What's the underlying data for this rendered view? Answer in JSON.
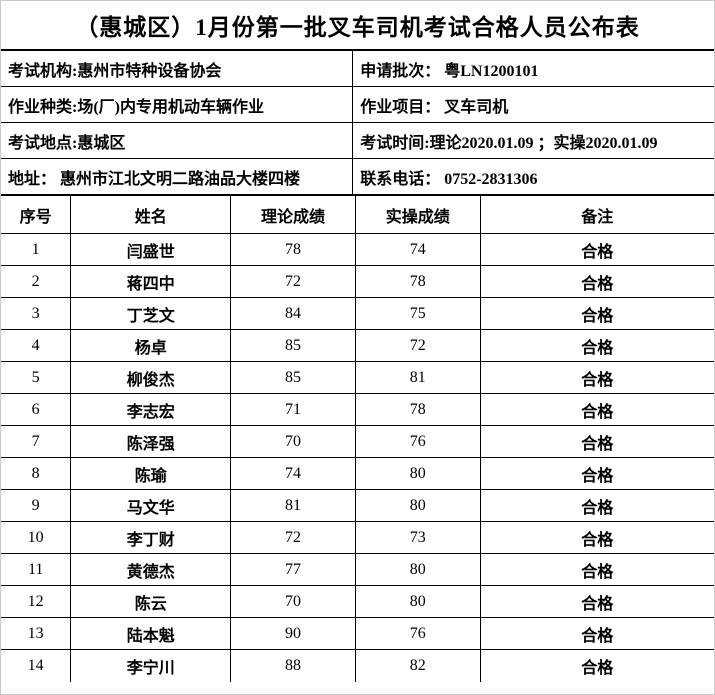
{
  "title": "（惠城区）1月份第一批叉车司机考试合格人员公布表",
  "info_rows": [
    {
      "left": "考试机构:惠州市特种设备协会",
      "right": "申请批次： 粤LN1200101"
    },
    {
      "left": "作业种类:场(厂)内专用机动车辆作业",
      "right": "作业项目： 叉车司机"
    },
    {
      "left": "考试地点:惠城区",
      "right": "考试时间:理论2020.01.09 ；实操2020.01.09"
    },
    {
      "left": "地址： 惠州市江北文明二路油品大楼四楼",
      "right": "联系电话： 0752-2831306"
    }
  ],
  "table": {
    "headers": [
      "序号",
      "姓名",
      "理论成绩",
      "实操成绩",
      "备注"
    ],
    "rows": [
      {
        "no": "1",
        "name": "闫盛世",
        "theory": "78",
        "practical": "74",
        "remark": "合格"
      },
      {
        "no": "2",
        "name": "蒋四中",
        "theory": "72",
        "practical": "78",
        "remark": "合格"
      },
      {
        "no": "3",
        "name": "丁芝文",
        "theory": "84",
        "practical": "75",
        "remark": "合格"
      },
      {
        "no": "4",
        "name": "杨卓",
        "theory": "85",
        "practical": "72",
        "remark": "合格"
      },
      {
        "no": "5",
        "name": "柳俊杰",
        "theory": "85",
        "practical": "81",
        "remark": "合格"
      },
      {
        "no": "6",
        "name": "李志宏",
        "theory": "71",
        "practical": "78",
        "remark": "合格"
      },
      {
        "no": "7",
        "name": "陈泽强",
        "theory": "70",
        "practical": "76",
        "remark": "合格"
      },
      {
        "no": "8",
        "name": "陈瑜",
        "theory": "74",
        "practical": "80",
        "remark": "合格"
      },
      {
        "no": "9",
        "name": "马文华",
        "theory": "81",
        "practical": "80",
        "remark": "合格"
      },
      {
        "no": "10",
        "name": "李丁财",
        "theory": "72",
        "practical": "73",
        "remark": "合格"
      },
      {
        "no": "11",
        "name": "黄德杰",
        "theory": "77",
        "practical": "80",
        "remark": "合格"
      },
      {
        "no": "12",
        "name": "陈云",
        "theory": "70",
        "practical": "80",
        "remark": "合格"
      },
      {
        "no": "13",
        "name": "陆本魁",
        "theory": "90",
        "practical": "76",
        "remark": "合格"
      },
      {
        "no": "14",
        "name": "李宁川",
        "theory": "88",
        "practical": "82",
        "remark": "合格"
      }
    ]
  },
  "colors": {
    "table_border": "#000000",
    "page_border": "#c9c9c9",
    "text": "#000000",
    "background": "#ffffff"
  }
}
